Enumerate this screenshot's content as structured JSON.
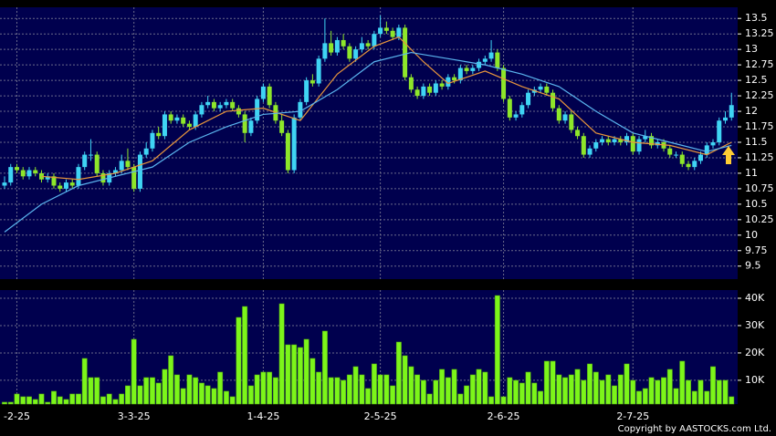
{
  "chart_data": [
    {
      "type": "candlestick",
      "xlim": [
        -0.74,
        119.0
      ],
      "xticks": [
        {
          "value": 2,
          "label": "-2-25"
        },
        {
          "value": 21,
          "label": "3-3-25"
        },
        {
          "value": 42,
          "label": "1-4-25"
        },
        {
          "value": 61,
          "label": "2-5-25"
        },
        {
          "value": 81,
          "label": "2-6-25"
        },
        {
          "value": 102,
          "label": "2-7-25"
        }
      ],
      "ylim": [
        9.29,
        13.68
      ],
      "yticks": [
        9.5,
        9.75,
        10,
        10.25,
        10.5,
        10.75,
        11,
        11.25,
        11.5,
        11.75,
        12,
        12.25,
        12.5,
        12.75,
        13,
        13.25,
        13.5
      ],
      "up_color": "#3fd4f4",
      "down_color": "#8ee62a",
      "ohlc": [
        [
          10.8,
          10.95,
          10.75,
          10.85
        ],
        [
          10.85,
          11.15,
          10.8,
          11.1
        ],
        [
          11.1,
          11.15,
          11.0,
          11.05
        ],
        [
          11.05,
          11.1,
          10.9,
          10.95
        ],
        [
          10.95,
          11.1,
          10.9,
          11.05
        ],
        [
          11.05,
          11.1,
          10.95,
          11.0
        ],
        [
          11.0,
          11.05,
          10.85,
          10.9
        ],
        [
          10.9,
          11.0,
          10.85,
          10.95
        ],
        [
          10.95,
          11.0,
          10.75,
          10.8
        ],
        [
          10.8,
          10.85,
          10.7,
          10.75
        ],
        [
          10.75,
          10.9,
          10.7,
          10.85
        ],
        [
          10.85,
          10.9,
          10.75,
          10.8
        ],
        [
          10.8,
          11.15,
          10.75,
          11.1
        ],
        [
          11.1,
          11.35,
          11.05,
          11.3
        ],
        [
          11.3,
          11.55,
          11.2,
          11.3
        ],
        [
          11.3,
          11.35,
          10.95,
          11.0
        ],
        [
          11.0,
          11.05,
          10.8,
          10.85
        ],
        [
          10.85,
          11.05,
          10.8,
          11.0
        ],
        [
          11.0,
          11.1,
          10.95,
          11.05
        ],
        [
          11.05,
          11.3,
          11.0,
          11.2
        ],
        [
          11.2,
          11.4,
          11.05,
          11.1
        ],
        [
          11.1,
          11.15,
          10.7,
          10.75
        ],
        [
          10.75,
          11.35,
          10.7,
          11.3
        ],
        [
          11.3,
          11.5,
          11.25,
          11.4
        ],
        [
          11.4,
          11.7,
          11.35,
          11.65
        ],
        [
          11.65,
          11.75,
          11.55,
          11.6
        ],
        [
          11.6,
          12.0,
          11.55,
          11.95
        ],
        [
          11.95,
          12.0,
          11.8,
          11.85
        ],
        [
          11.85,
          11.95,
          11.8,
          11.9
        ],
        [
          11.9,
          11.95,
          11.75,
          11.8
        ],
        [
          11.8,
          11.85,
          11.7,
          11.75
        ],
        [
          11.75,
          12.0,
          11.7,
          11.95
        ],
        [
          11.95,
          12.15,
          11.9,
          12.1
        ],
        [
          12.1,
          12.25,
          12.05,
          12.15
        ],
        [
          12.15,
          12.2,
          12.0,
          12.05
        ],
        [
          12.05,
          12.15,
          12.0,
          12.1
        ],
        [
          12.1,
          12.2,
          12.05,
          12.15
        ],
        [
          12.15,
          12.2,
          12.0,
          12.05
        ],
        [
          12.05,
          12.1,
          11.9,
          11.95
        ],
        [
          11.95,
          12.0,
          11.5,
          11.65
        ],
        [
          11.65,
          11.9,
          11.6,
          11.85
        ],
        [
          11.85,
          12.25,
          11.8,
          12.2
        ],
        [
          12.2,
          12.45,
          12.15,
          12.4
        ],
        [
          12.4,
          12.45,
          12.05,
          12.1
        ],
        [
          12.1,
          12.15,
          11.8,
          11.85
        ],
        [
          11.85,
          11.95,
          11.6,
          11.65
        ],
        [
          11.65,
          11.7,
          11.0,
          11.05
        ],
        [
          11.05,
          11.95,
          11.0,
          11.9
        ],
        [
          11.9,
          12.2,
          11.85,
          12.15
        ],
        [
          12.15,
          12.55,
          12.1,
          12.5
        ],
        [
          12.5,
          12.6,
          12.4,
          12.45
        ],
        [
          12.45,
          12.9,
          12.4,
          12.85
        ],
        [
          12.85,
          13.5,
          12.8,
          13.1
        ],
        [
          13.1,
          13.3,
          12.9,
          12.95
        ],
        [
          12.95,
          13.2,
          12.9,
          13.15
        ],
        [
          13.15,
          13.25,
          13.0,
          13.05
        ],
        [
          13.05,
          13.1,
          12.8,
          12.85
        ],
        [
          12.85,
          13.05,
          12.8,
          13.0
        ],
        [
          13.0,
          13.2,
          12.95,
          13.1
        ],
        [
          13.1,
          13.15,
          13.0,
          13.05
        ],
        [
          13.05,
          13.3,
          13.0,
          13.25
        ],
        [
          13.25,
          13.55,
          13.2,
          13.35
        ],
        [
          13.35,
          13.45,
          13.25,
          13.3
        ],
        [
          13.3,
          13.35,
          13.15,
          13.2
        ],
        [
          13.2,
          13.4,
          13.15,
          13.35
        ],
        [
          13.35,
          13.4,
          12.5,
          12.55
        ],
        [
          12.55,
          12.6,
          12.3,
          12.35
        ],
        [
          12.35,
          12.4,
          12.2,
          12.25
        ],
        [
          12.25,
          12.45,
          12.2,
          12.4
        ],
        [
          12.4,
          12.45,
          12.25,
          12.3
        ],
        [
          12.3,
          12.5,
          12.25,
          12.45
        ],
        [
          12.45,
          12.5,
          12.35,
          12.4
        ],
        [
          12.4,
          12.6,
          12.35,
          12.55
        ],
        [
          12.55,
          12.6,
          12.45,
          12.5
        ],
        [
          12.5,
          12.75,
          12.45,
          12.7
        ],
        [
          12.7,
          12.75,
          12.6,
          12.65
        ],
        [
          12.65,
          12.75,
          12.6,
          12.7
        ],
        [
          12.7,
          12.85,
          12.65,
          12.8
        ],
        [
          12.8,
          12.9,
          12.75,
          12.85
        ],
        [
          12.85,
          13.15,
          12.8,
          12.95
        ],
        [
          12.95,
          13.0,
          12.65,
          12.7
        ],
        [
          12.7,
          12.75,
          12.15,
          12.2
        ],
        [
          12.2,
          12.25,
          11.85,
          11.9
        ],
        [
          11.9,
          12.0,
          11.85,
          11.95
        ],
        [
          11.95,
          12.15,
          11.9,
          12.1
        ],
        [
          12.1,
          12.35,
          12.05,
          12.3
        ],
        [
          12.3,
          12.4,
          12.25,
          12.35
        ],
        [
          12.35,
          12.45,
          12.3,
          12.4
        ],
        [
          12.4,
          12.45,
          12.25,
          12.3
        ],
        [
          12.3,
          12.35,
          12.0,
          12.05
        ],
        [
          12.05,
          12.1,
          11.8,
          11.85
        ],
        [
          11.85,
          12.0,
          11.8,
          11.95
        ],
        [
          11.95,
          12.0,
          11.65,
          11.7
        ],
        [
          11.7,
          11.75,
          11.55,
          11.6
        ],
        [
          11.6,
          11.65,
          11.25,
          11.3
        ],
        [
          11.3,
          11.45,
          11.25,
          11.4
        ],
        [
          11.4,
          11.55,
          11.35,
          11.5
        ],
        [
          11.5,
          11.6,
          11.45,
          11.55
        ],
        [
          11.55,
          11.6,
          11.45,
          11.5
        ],
        [
          11.5,
          11.6,
          11.45,
          11.55
        ],
        [
          11.55,
          11.6,
          11.45,
          11.5
        ],
        [
          11.5,
          11.65,
          11.45,
          11.6
        ],
        [
          11.6,
          11.65,
          11.3,
          11.35
        ],
        [
          11.35,
          11.6,
          11.3,
          11.55
        ],
        [
          11.55,
          11.7,
          11.5,
          11.6
        ],
        [
          11.6,
          11.65,
          11.4,
          11.45
        ],
        [
          11.45,
          11.55,
          11.4,
          11.5
        ],
        [
          11.5,
          11.55,
          11.35,
          11.4
        ],
        [
          11.4,
          11.45,
          11.25,
          11.3
        ],
        [
          11.3,
          11.35,
          11.25,
          11.3
        ],
        [
          11.3,
          11.35,
          11.1,
          11.15
        ],
        [
          11.15,
          11.2,
          11.05,
          11.1
        ],
        [
          11.1,
          11.25,
          11.05,
          11.2
        ],
        [
          11.2,
          11.35,
          11.15,
          11.3
        ],
        [
          11.3,
          11.5,
          11.25,
          11.45
        ],
        [
          11.45,
          11.55,
          11.4,
          11.5
        ],
        [
          11.5,
          11.9,
          11.45,
          11.85
        ],
        [
          11.85,
          12.0,
          11.8,
          11.9
        ],
        [
          11.9,
          12.3,
          11.85,
          12.1
        ]
      ],
      "series": [
        {
          "type": "line",
          "color": "#e8963c",
          "x": [
            6,
            12,
            18,
            24,
            30,
            36,
            42,
            48,
            54,
            60,
            64,
            68,
            72,
            78,
            84,
            90,
            96,
            102,
            108,
            114,
            118
          ],
          "values": [
            10.95,
            10.9,
            11.0,
            11.2,
            11.7,
            12.0,
            12.05,
            11.85,
            12.6,
            13.05,
            13.2,
            12.8,
            12.45,
            12.65,
            12.4,
            12.2,
            11.65,
            11.5,
            11.45,
            11.3,
            11.5
          ]
        },
        {
          "type": "line",
          "color": "#5ab4ee",
          "x": [
            0,
            6,
            12,
            18,
            24,
            30,
            36,
            42,
            48,
            54,
            60,
            66,
            72,
            78,
            84,
            90,
            96,
            102,
            108,
            114,
            118
          ],
          "values": [
            10.05,
            10.5,
            10.8,
            10.95,
            11.1,
            11.5,
            11.75,
            11.95,
            12.0,
            12.35,
            12.8,
            12.95,
            12.85,
            12.75,
            12.6,
            12.4,
            12.0,
            11.65,
            11.5,
            11.35,
            11.45
          ]
        }
      ]
    },
    {
      "type": "bar",
      "color": "#7cf51a",
      "xlim": [
        -0.74,
        119.0
      ],
      "ylim": [
        1300,
        43000
      ],
      "yticks": [
        {
          "value": 10000,
          "label": "10K"
        },
        {
          "value": 20000,
          "label": "20K"
        },
        {
          "value": 30000,
          "label": "30K"
        },
        {
          "value": 40000,
          "label": "40K"
        }
      ],
      "values": [
        2000,
        2000,
        5000,
        4000,
        4000,
        3000,
        5000,
        2000,
        6000,
        4000,
        3000,
        5000,
        5000,
        18000,
        11000,
        11000,
        4000,
        5000,
        3000,
        5000,
        8000,
        25000,
        8000,
        11000,
        11000,
        9000,
        14000,
        19000,
        12000,
        7000,
        12000,
        11000,
        9000,
        8000,
        7000,
        13000,
        6000,
        4000,
        33000,
        37000,
        8000,
        12000,
        13000,
        13000,
        11000,
        38000,
        23000,
        23000,
        22000,
        25000,
        18000,
        13000,
        28000,
        11000,
        11000,
        10000,
        12000,
        15000,
        12000,
        7000,
        16000,
        12000,
        12000,
        8000,
        24000,
        19000,
        15000,
        12000,
        10000,
        5000,
        10000,
        14000,
        11000,
        14000,
        5000,
        8000,
        12000,
        14000,
        13000,
        4000,
        41000,
        4000,
        11000,
        10000,
        9000,
        13000,
        9000,
        6000,
        17000,
        17000,
        12000,
        11000,
        12000,
        14000,
        10000,
        16000,
        13000,
        10000,
        12000,
        8000,
        12000,
        16000,
        10000,
        6000,
        7000,
        11000,
        10000,
        11000,
        14000,
        7000,
        17000,
        10000,
        6000,
        10000,
        6000,
        15000,
        10000,
        10000,
        4000
      ]
    }
  ],
  "footer": "Copyright by AASTOCKS.com Ltd."
}
